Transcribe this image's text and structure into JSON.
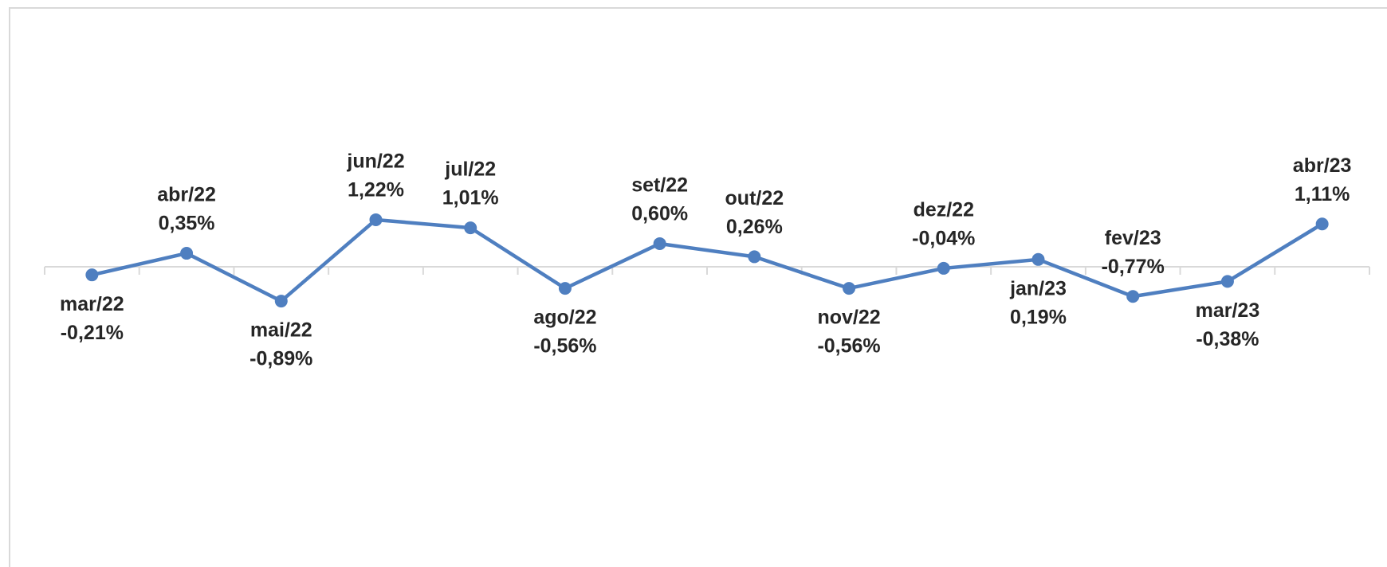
{
  "chart_data": {
    "type": "line",
    "categories": [
      "mar/22",
      "abr/22",
      "mai/22",
      "jun/22",
      "jul/22",
      "ago/22",
      "set/22",
      "out/22",
      "nov/22",
      "dez/22",
      "jan/23",
      "fev/23",
      "mar/23",
      "abr/23"
    ],
    "values": [
      -0.21,
      0.35,
      -0.89,
      1.22,
      1.01,
      -0.56,
      0.6,
      0.26,
      -0.56,
      -0.04,
      0.19,
      -0.77,
      -0.38,
      1.11
    ],
    "value_labels": [
      "-0,21%",
      "0,35%",
      "-0,89%",
      "1,22%",
      "1,01%",
      "-0,56%",
      "0,60%",
      "0,26%",
      "-0,56%",
      "-0,04%",
      "0,19%",
      "-0,77%",
      "-0,38%",
      "1,11%"
    ],
    "color": "#4f7fc0",
    "ylim": [
      -5,
      5
    ]
  }
}
